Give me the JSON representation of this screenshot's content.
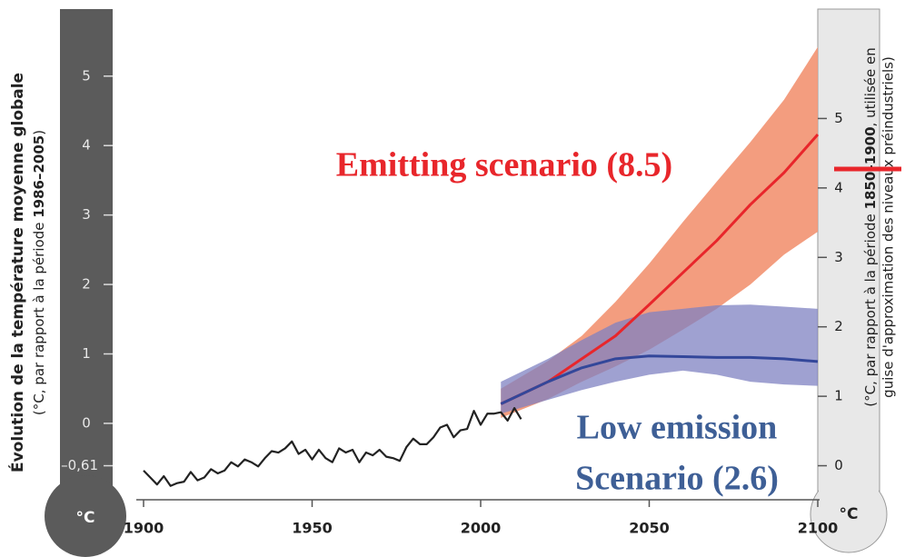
{
  "chart_data": {
    "type": "line",
    "y_label": "Évolution de la température moyenne globale",
    "y_sublabel": [
      "(°C, par rapport à la période ",
      "1986–2005",
      ")"
    ],
    "y2_label": [
      "(°C, par rapport à la période ",
      "1850–1900",
      ", utilisée en"
    ],
    "y2_sublabel": "guise d'approximation des niveaux préindustriels)",
    "unit_left": "°C",
    "unit_right": "°C",
    "annotations": [
      "Emitting scenario (8.5)",
      "Low emission",
      "Scenario (2.6)"
    ],
    "xlim": [
      1900,
      2100
    ],
    "xticks": [
      1900,
      1950,
      2000,
      2050,
      2100
    ],
    "ylim": [
      -1.1,
      5.9
    ],
    "yticks": [
      {
        "value": -0.61,
        "label": "–0,61"
      },
      0,
      1,
      2,
      3,
      4,
      5
    ],
    "y2lim": [
      -0.49,
      6.51
    ],
    "y2ticks": [
      0,
      1,
      2,
      3,
      4,
      5
    ],
    "series": [
      {
        "color": "#222222",
        "x": [
          1900,
          1902,
          1904,
          1906,
          1908,
          1910,
          1912,
          1914,
          1916,
          1918,
          1920,
          1922,
          1924,
          1926,
          1928,
          1930,
          1932,
          1934,
          1936,
          1938,
          1940,
          1942,
          1944,
          1946,
          1948,
          1950,
          1952,
          1954,
          1956,
          1958,
          1960,
          1962,
          1964,
          1966,
          1968,
          1970,
          1972,
          1974,
          1976,
          1978,
          1980,
          1982,
          1984,
          1986,
          1988,
          1990,
          1992,
          1994,
          1996,
          1998,
          2000,
          2002,
          2004,
          2006,
          2008,
          2010,
          2012
        ],
        "values": [
          -0.68,
          -0.78,
          -0.88,
          -0.76,
          -0.9,
          -0.86,
          -0.84,
          -0.7,
          -0.82,
          -0.78,
          -0.66,
          -0.72,
          -0.68,
          -0.56,
          -0.62,
          -0.52,
          -0.56,
          -0.62,
          -0.5,
          -0.4,
          -0.42,
          -0.36,
          -0.26,
          -0.44,
          -0.38,
          -0.52,
          -0.38,
          -0.5,
          -0.56,
          -0.36,
          -0.42,
          -0.38,
          -0.56,
          -0.42,
          -0.46,
          -0.38,
          -0.48,
          -0.5,
          -0.54,
          -0.34,
          -0.22,
          -0.3,
          -0.3,
          -0.2,
          -0.06,
          -0.02,
          -0.2,
          -0.1,
          -0.08,
          0.18,
          -0.02,
          0.14,
          0.14,
          0.16,
          0.04,
          0.22,
          0.06
        ]
      },
      {
        "color": "#e8262b",
        "band_color": "#f29878",
        "x": [
          2006,
          2020,
          2030,
          2040,
          2050,
          2060,
          2070,
          2080,
          2090,
          2100
        ],
        "values": [
          0.28,
          0.6,
          0.93,
          1.26,
          1.71,
          2.17,
          2.63,
          3.15,
          3.61,
          4.16
        ],
        "upper": [
          0.5,
          0.9,
          1.26,
          1.75,
          2.3,
          2.9,
          3.48,
          4.05,
          4.66,
          5.42
        ],
        "lower": [
          0.08,
          0.35,
          0.6,
          0.82,
          1.06,
          1.35,
          1.65,
          2.0,
          2.43,
          2.76
        ]
      },
      {
        "color": "#33479a",
        "band_color": "#7f82c2",
        "x": [
          2006,
          2020,
          2030,
          2040,
          2050,
          2060,
          2070,
          2080,
          2090,
          2100
        ],
        "values": [
          0.28,
          0.6,
          0.8,
          0.93,
          0.97,
          0.96,
          0.95,
          0.95,
          0.93,
          0.89
        ],
        "upper": [
          0.6,
          0.93,
          1.2,
          1.45,
          1.6,
          1.65,
          1.7,
          1.71,
          1.68,
          1.65
        ],
        "lower": [
          0.14,
          0.34,
          0.48,
          0.6,
          0.7,
          0.76,
          0.7,
          0.6,
          0.56,
          0.54
        ]
      }
    ]
  }
}
